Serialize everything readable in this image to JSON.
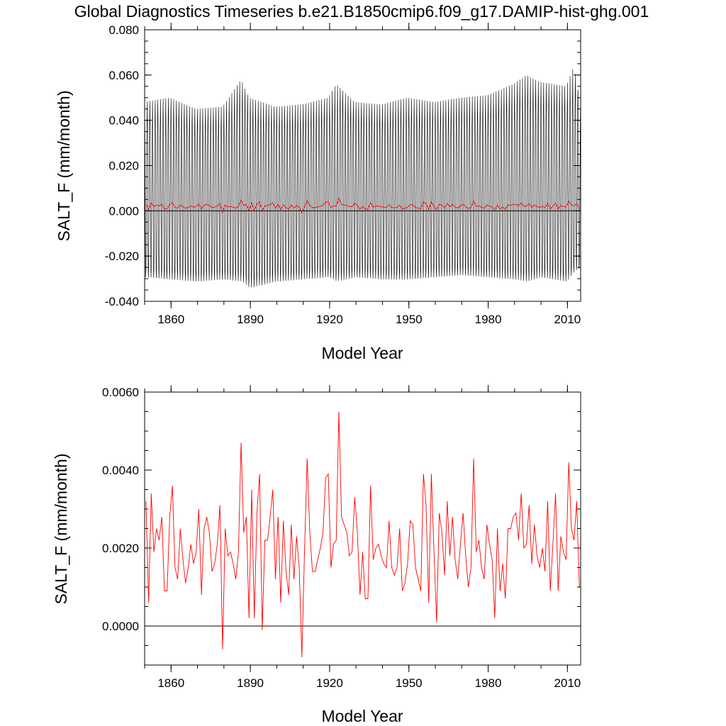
{
  "figure": {
    "title": "Global Diagnostics Timeseries b.e21.B1850cmip6.f09_g17.DAMIP-hist-ghg.001"
  },
  "chart_data": [
    {
      "type": "line",
      "title": "Global Diagnostics Timeseries b.e21.B1850cmip6.f09_g17.DAMIP-hist-ghg.001",
      "xlabel": "Model Year",
      "ylabel": "SALT_F (mm/month)",
      "xlim": [
        1850,
        2015
      ],
      "ylim": [
        -0.04,
        0.08
      ],
      "x_tick_labels": [
        "1860",
        "1890",
        "1920",
        "1950",
        "1980",
        "2010"
      ],
      "y_tick_labels": [
        "-0.040",
        "-0.020",
        "0.000",
        "0.020",
        "0.040",
        "0.060",
        "0.080"
      ],
      "reference_line": 0,
      "series": [
        {
          "color": "#000000",
          "monthly_envelope_by_year": {
            "x": [
              1850,
              1860,
              1870,
              1880,
              1887,
              1890,
              1900,
              1910,
              1920,
              1923,
              1930,
              1940,
              1950,
              1960,
              1970,
              1980,
              1990,
              1995,
              2000,
              2010,
              2013,
              2015
            ],
            "max": [
              0.048,
              0.05,
              0.045,
              0.046,
              0.058,
              0.05,
              0.046,
              0.047,
              0.05,
              0.056,
              0.048,
              0.047,
              0.05,
              0.048,
              0.05,
              0.051,
              0.056,
              0.06,
              0.057,
              0.055,
              0.064,
              0.05
            ],
            "min": [
              -0.031,
              -0.032,
              -0.033,
              -0.032,
              -0.033,
              -0.036,
              -0.033,
              -0.032,
              -0.031,
              -0.033,
              -0.031,
              -0.032,
              -0.032,
              -0.031,
              -0.03,
              -0.031,
              -0.032,
              -0.033,
              -0.031,
              -0.033,
              -0.028,
              -0.027
            ]
          }
        },
        {
          "color": "#ff0000",
          "x": [
            1850,
            1851,
            1852,
            1853,
            1854,
            1855,
            1856,
            1857,
            1858,
            1859,
            1860,
            1861,
            1862,
            1863,
            1864,
            1865,
            1866,
            1867,
            1868,
            1869,
            1870,
            1871,
            1872,
            1873,
            1874,
            1875,
            1876,
            1877,
            1878,
            1879,
            1880,
            1881,
            1882,
            1883,
            1884,
            1885,
            1886,
            1887,
            1888,
            1889,
            1890,
            1891,
            1892,
            1893,
            1894,
            1895,
            1896,
            1897,
            1898,
            1899,
            1900,
            1901,
            1902,
            1903,
            1904,
            1905,
            1906,
            1907,
            1908,
            1909,
            1910,
            1911,
            1912,
            1913,
            1914,
            1915,
            1916,
            1917,
            1918,
            1919,
            1920,
            1921,
            1922,
            1923,
            1924,
            1925,
            1926,
            1927,
            1928,
            1929,
            1930,
            1931,
            1932,
            1933,
            1934,
            1935,
            1936,
            1937,
            1938,
            1939,
            1940,
            1941,
            1942,
            1943,
            1944,
            1945,
            1946,
            1947,
            1948,
            1949,
            1950,
            1951,
            1952,
            1953,
            1954,
            1955,
            1956,
            1957,
            1958,
            1959,
            1960,
            1961,
            1962,
            1963,
            1964,
            1965,
            1966,
            1967,
            1968,
            1969,
            1970,
            1971,
            1972,
            1973,
            1974,
            1975,
            1976,
            1977,
            1978,
            1979,
            1980,
            1981,
            1982,
            1983,
            1984,
            1985,
            1986,
            1987,
            1988,
            1989,
            1990,
            1991,
            1992,
            1993,
            1994,
            1995,
            1996,
            1997,
            1998,
            1999,
            2000,
            2001,
            2002,
            2003,
            2004,
            2005,
            2006,
            2007,
            2008,
            2009,
            2010,
            2011,
            2012,
            2013,
            2014
          ],
          "values": [
            0.0032,
            0.0006,
            0.0034,
            0.0019,
            0.0025,
            0.0022,
            0.0028,
            0.0009,
            0.0009,
            0.0028,
            0.0036,
            0.0015,
            0.0012,
            0.0025,
            0.0017,
            0.0011,
            0.0015,
            0.0021,
            0.0016,
            0.0019,
            0.003,
            0.0008,
            0.0025,
            0.0028,
            0.0024,
            0.0014,
            0.0016,
            0.0021,
            0.0031,
            -0.0006,
            0.0025,
            0.0018,
            0.0019,
            0.0016,
            0.0012,
            0.0019,
            0.0047,
            0.0024,
            0.0028,
            0.0002,
            0.0035,
            0.0002,
            0.0029,
            0.0039,
            -0.0001,
            0.0022,
            0.0022,
            0.0028,
            0.0035,
            0.0012,
            0.0028,
            0.0006,
            0.0027,
            0.0014,
            0.0008,
            0.0026,
            0.0012,
            0.0023,
            0.0015,
            -0.0008,
            0.0019,
            0.0043,
            0.0024,
            0.0014,
            0.0014,
            0.0017,
            0.002,
            0.0024,
            0.0038,
            0.0039,
            0.0015,
            0.0021,
            0.0022,
            0.0055,
            0.0028,
            0.0026,
            0.0024,
            0.0018,
            0.0019,
            0.0033,
            0.0024,
            0.0008,
            0.0019,
            0.0007,
            0.0007,
            0.0036,
            0.0017,
            0.002,
            0.0021,
            0.0018,
            0.0016,
            0.0015,
            0.0027,
            0.0015,
            0.0013,
            0.0015,
            0.0025,
            0.0009,
            0.0011,
            0.0016,
            0.0027,
            0.0026,
            0.0015,
            0.0012,
            0.0009,
            0.0039,
            0.0031,
            0.0006,
            0.0039,
            0.0019,
            0.0001,
            0.0029,
            0.0024,
            0.0013,
            0.0032,
            0.0018,
            0.0028,
            0.0017,
            0.0012,
            0.0021,
            0.0029,
            0.0018,
            0.001,
            0.0015,
            0.0043,
            0.0019,
            0.0022,
            0.0015,
            0.0012,
            0.0026,
            0.0021,
            0.0017,
            0.0002,
            0.0025,
            0.0009,
            0.0016,
            0.0007,
            0.0025,
            0.0025,
            0.0028,
            0.0029,
            0.0022,
            0.0034,
            0.002,
            0.0021,
            0.0031,
            0.0016,
            0.0026,
            0.0018,
            0.0015,
            0.002,
            0.0014,
            0.0032,
            0.0009,
            0.0021,
            0.0034,
            0.0009,
            0.0023,
            0.0019,
            0.0017,
            0.0042,
            0.0025,
            0.0022,
            0.0032,
            0.001
          ]
        }
      ]
    },
    {
      "type": "line",
      "xlabel": "Model Year",
      "ylabel": "SALT_F (mm/month)",
      "xlim": [
        1850,
        2015
      ],
      "ylim": [
        -0.001,
        0.006
      ],
      "x_tick_labels": [
        "1860",
        "1890",
        "1920",
        "1950",
        "1980",
        "2010"
      ],
      "y_tick_labels": [
        "0.0000",
        "0.0020",
        "0.0040",
        "0.0060"
      ],
      "reference_line": 0,
      "series": [
        {
          "color": "#ff0000",
          "x": [
            1850,
            1851,
            1852,
            1853,
            1854,
            1855,
            1856,
            1857,
            1858,
            1859,
            1860,
            1861,
            1862,
            1863,
            1864,
            1865,
            1866,
            1867,
            1868,
            1869,
            1870,
            1871,
            1872,
            1873,
            1874,
            1875,
            1876,
            1877,
            1878,
            1879,
            1880,
            1881,
            1882,
            1883,
            1884,
            1885,
            1886,
            1887,
            1888,
            1889,
            1890,
            1891,
            1892,
            1893,
            1894,
            1895,
            1896,
            1897,
            1898,
            1899,
            1900,
            1901,
            1902,
            1903,
            1904,
            1905,
            1906,
            1907,
            1908,
            1909,
            1910,
            1911,
            1912,
            1913,
            1914,
            1915,
            1916,
            1917,
            1918,
            1919,
            1920,
            1921,
            1922,
            1923,
            1924,
            1925,
            1926,
            1927,
            1928,
            1929,
            1930,
            1931,
            1932,
            1933,
            1934,
            1935,
            1936,
            1937,
            1938,
            1939,
            1940,
            1941,
            1942,
            1943,
            1944,
            1945,
            1946,
            1947,
            1948,
            1949,
            1950,
            1951,
            1952,
            1953,
            1954,
            1955,
            1956,
            1957,
            1958,
            1959,
            1960,
            1961,
            1962,
            1963,
            1964,
            1965,
            1966,
            1967,
            1968,
            1969,
            1970,
            1971,
            1972,
            1973,
            1974,
            1975,
            1976,
            1977,
            1978,
            1979,
            1980,
            1981,
            1982,
            1983,
            1984,
            1985,
            1986,
            1987,
            1988,
            1989,
            1990,
            1991,
            1992,
            1993,
            1994,
            1995,
            1996,
            1997,
            1998,
            1999,
            2000,
            2001,
            2002,
            2003,
            2004,
            2005,
            2006,
            2007,
            2008,
            2009,
            2010,
            2011,
            2012,
            2013,
            2014
          ],
          "values": [
            0.0032,
            0.0006,
            0.0034,
            0.0019,
            0.0025,
            0.0022,
            0.0028,
            0.0009,
            0.0009,
            0.0028,
            0.0036,
            0.0015,
            0.0012,
            0.0025,
            0.0017,
            0.0011,
            0.0015,
            0.0021,
            0.0016,
            0.0019,
            0.003,
            0.0008,
            0.0025,
            0.0028,
            0.0024,
            0.0014,
            0.0016,
            0.0021,
            0.0031,
            -0.0006,
            0.0025,
            0.0018,
            0.0019,
            0.0016,
            0.0012,
            0.0019,
            0.0047,
            0.0024,
            0.0028,
            0.0002,
            0.0035,
            0.0002,
            0.0029,
            0.0039,
            -0.0001,
            0.0022,
            0.0022,
            0.0028,
            0.0035,
            0.0012,
            0.0028,
            0.0006,
            0.0027,
            0.0014,
            0.0008,
            0.0026,
            0.0012,
            0.0023,
            0.0015,
            -0.0008,
            0.0019,
            0.0043,
            0.0024,
            0.0014,
            0.0014,
            0.0017,
            0.002,
            0.0024,
            0.0038,
            0.0039,
            0.0015,
            0.0021,
            0.0022,
            0.0055,
            0.0028,
            0.0026,
            0.0024,
            0.0018,
            0.0019,
            0.0033,
            0.0024,
            0.0008,
            0.0019,
            0.0007,
            0.0007,
            0.0036,
            0.0017,
            0.002,
            0.0021,
            0.0018,
            0.0016,
            0.0015,
            0.0027,
            0.0015,
            0.0013,
            0.0015,
            0.0025,
            0.0009,
            0.0011,
            0.0016,
            0.0027,
            0.0026,
            0.0015,
            0.0012,
            0.0009,
            0.0039,
            0.0031,
            0.0006,
            0.0039,
            0.0019,
            0.0001,
            0.0029,
            0.0024,
            0.0013,
            0.0032,
            0.0018,
            0.0028,
            0.0017,
            0.0012,
            0.0021,
            0.0029,
            0.0018,
            0.001,
            0.0015,
            0.0043,
            0.0019,
            0.0022,
            0.0015,
            0.0012,
            0.0026,
            0.0021,
            0.0017,
            0.0002,
            0.0025,
            0.0009,
            0.0016,
            0.0007,
            0.0025,
            0.0025,
            0.0028,
            0.0029,
            0.0022,
            0.0034,
            0.002,
            0.0021,
            0.0031,
            0.0016,
            0.0026,
            0.0018,
            0.0015,
            0.002,
            0.0014,
            0.0032,
            0.0009,
            0.0021,
            0.0034,
            0.0009,
            0.0023,
            0.0019,
            0.0017,
            0.0042,
            0.0025,
            0.0022,
            0.0032,
            0.001
          ]
        }
      ]
    }
  ]
}
